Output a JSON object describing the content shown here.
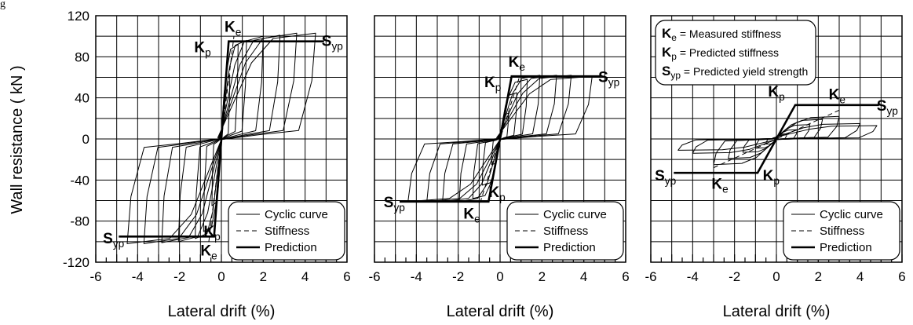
{
  "figure": {
    "clipped_top_label": "g",
    "ylabel": "Wall resistance ( kN )",
    "xlabel": "Lateral drift (%)"
  },
  "chart_data": [
    {
      "type": "line",
      "panel": "left",
      "xlim": [
        -6,
        6
      ],
      "ylim": [
        -120,
        120
      ],
      "xticks": [
        "-6",
        "-4",
        "-2",
        "0",
        "2",
        "4",
        "6"
      ],
      "yticks": [
        "120",
        "80",
        "40",
        "0",
        "-40",
        "-80",
        "-120"
      ],
      "grid": true,
      "xlabel": "Lateral drift (%)",
      "ylabel": "Wall resistance ( kN )",
      "legend": {
        "placement": "bottom-right",
        "entries": [
          "Cyclic curve",
          "Stiffness",
          "Prediction"
        ]
      },
      "cyclic_amplitudes": [
        {
          "pos_x": 0.4,
          "pos_y": 62,
          "neg_x": -0.45,
          "neg_y": -65
        },
        {
          "pos_x": 0.8,
          "pos_y": 92,
          "neg_x": -0.85,
          "neg_y": -90
        },
        {
          "pos_x": 1.2,
          "pos_y": 96,
          "neg_x": -1.25,
          "neg_y": -97
        },
        {
          "pos_x": 2.0,
          "pos_y": 100,
          "neg_x": -2.05,
          "neg_y": -100
        },
        {
          "pos_x": 2.8,
          "pos_y": 101,
          "neg_x": -2.85,
          "neg_y": -101
        },
        {
          "pos_x": 3.6,
          "pos_y": 103,
          "neg_x": -3.7,
          "neg_y": -102
        },
        {
          "pos_x": 4.5,
          "pos_y": 103,
          "neg_x": -4.5,
          "neg_y": -102
        }
      ],
      "stiffness": [
        {
          "x": -0.6,
          "y": -100
        },
        {
          "x": 0.6,
          "y": 100
        }
      ],
      "prediction": [
        {
          "x": -4.9,
          "y": -95
        },
        {
          "x": -0.35,
          "y": -95
        },
        {
          "x": 0.35,
          "y": 95
        },
        {
          "x": 4.9,
          "y": 95
        }
      ],
      "annotations": [
        {
          "base": "K",
          "sub": "e",
          "x": 0.55,
          "y": 109
        },
        {
          "base": "K",
          "sub": "p",
          "x": -0.9,
          "y": 89
        },
        {
          "base": "S",
          "sub": "yp",
          "x": 5.3,
          "y": 95
        },
        {
          "base": "K",
          "sub": "p",
          "x": -0.45,
          "y": -90
        },
        {
          "base": "K",
          "sub": "e",
          "x": -0.6,
          "y": -109
        },
        {
          "base": "S",
          "sub": "yp",
          "x": -5.15,
          "y": -97
        }
      ]
    },
    {
      "type": "line",
      "panel": "middle",
      "xlim": [
        -6,
        6
      ],
      "ylim": [
        -120,
        120
      ],
      "xticks": [
        "-6",
        "-4",
        "-2",
        "0",
        "2",
        "4",
        "6"
      ],
      "grid": true,
      "xlabel": "Lateral drift (%)",
      "legend": {
        "placement": "bottom-right",
        "entries": [
          "Cyclic curve",
          "Stiffness",
          "Prediction"
        ]
      },
      "cyclic_amplitudes": [
        {
          "pos_x": 0.4,
          "pos_y": 25,
          "neg_x": -0.4,
          "neg_y": -25
        },
        {
          "pos_x": 0.8,
          "pos_y": 45,
          "neg_x": -0.85,
          "neg_y": -45
        },
        {
          "pos_x": 1.3,
          "pos_y": 58,
          "neg_x": -1.3,
          "neg_y": -58
        },
        {
          "pos_x": 1.9,
          "pos_y": 62,
          "neg_x": -1.95,
          "neg_y": -61
        },
        {
          "pos_x": 2.7,
          "pos_y": 62,
          "neg_x": -2.75,
          "neg_y": -61
        },
        {
          "pos_x": 3.4,
          "pos_y": 62,
          "neg_x": -3.5,
          "neg_y": -61
        },
        {
          "pos_x": 4.4,
          "pos_y": 61,
          "neg_x": -4.4,
          "neg_y": -61
        }
      ],
      "stiffness": [
        {
          "x": -0.95,
          "y": -62
        },
        {
          "x": 0.95,
          "y": 62
        }
      ],
      "prediction": [
        {
          "x": -4.8,
          "y": -61
        },
        {
          "x": -0.55,
          "y": -61
        },
        {
          "x": 0.55,
          "y": 61
        },
        {
          "x": 4.8,
          "y": 61
        }
      ],
      "annotations": [
        {
          "base": "K",
          "sub": "e",
          "x": 0.8,
          "y": 75
        },
        {
          "base": "K",
          "sub": "p",
          "x": -0.35,
          "y": 55
        },
        {
          "base": "S",
          "sub": "yp",
          "x": 5.2,
          "y": 60
        },
        {
          "base": "K",
          "sub": "p",
          "x": -0.15,
          "y": -52
        },
        {
          "base": "K",
          "sub": "e",
          "x": -1.35,
          "y": -73
        },
        {
          "base": "S",
          "sub": "yp",
          "x": -5.05,
          "y": -62
        }
      ]
    },
    {
      "type": "line",
      "panel": "right",
      "xlim": [
        -6,
        6
      ],
      "ylim": [
        -120,
        120
      ],
      "xticks": [
        "-6",
        "-4",
        "-2",
        "0",
        "2",
        "4",
        "6"
      ],
      "grid": true,
      "xlabel": "Lateral drift (%)",
      "legend": {
        "placement": "bottom-right",
        "entries": [
          "Cyclic curve",
          "Stiffness",
          "Prediction"
        ]
      },
      "note": [
        {
          "base": "K",
          "sub": "e",
          "text": " = Measured stiffness"
        },
        {
          "base": "K",
          "sub": "p",
          "text": " = Predicted stiffness"
        },
        {
          "base": "S",
          "sub": "yp",
          "text": " = Predicted yield strength"
        }
      ],
      "cyclic_amplitudes": [
        {
          "pos_x": 0.5,
          "pos_y": 5,
          "neg_x": -0.5,
          "neg_y": -5
        },
        {
          "pos_x": 1.0,
          "pos_y": 9,
          "neg_x": -1.0,
          "neg_y": -9
        },
        {
          "pos_x": 1.6,
          "pos_y": 14,
          "neg_x": -1.6,
          "neg_y": -13
        },
        {
          "pos_x": 2.2,
          "pos_y": 19,
          "neg_x": -2.3,
          "neg_y": -19
        },
        {
          "pos_x": 3.0,
          "pos_y": 22,
          "neg_x": -3.0,
          "neg_y": -25
        },
        {
          "pos_x": 4.0,
          "pos_y": 15,
          "neg_x": -4.0,
          "neg_y": -14
        },
        {
          "pos_x": 4.8,
          "pos_y": 13,
          "neg_x": -4.7,
          "neg_y": -11
        }
      ],
      "stiffness": [
        {
          "x": -3.0,
          "y": -28
        },
        {
          "x": 3.0,
          "y": 28
        }
      ],
      "prediction": [
        {
          "x": -4.9,
          "y": -33
        },
        {
          "x": -0.9,
          "y": -33
        },
        {
          "x": 0.9,
          "y": 33
        },
        {
          "x": 4.9,
          "y": 33
        }
      ],
      "annotations": [
        {
          "base": "K",
          "sub": "e",
          "x": 2.9,
          "y": 43
        },
        {
          "base": "K",
          "sub": "p",
          "x": 0.0,
          "y": 46
        },
        {
          "base": "S",
          "sub": "yp",
          "x": 5.3,
          "y": 32
        },
        {
          "base": "K",
          "sub": "p",
          "x": -0.25,
          "y": -36
        },
        {
          "base": "K",
          "sub": "e",
          "x": -2.7,
          "y": -44
        },
        {
          "base": "S",
          "sub": "yp",
          "x": -5.3,
          "y": -36
        }
      ]
    }
  ]
}
